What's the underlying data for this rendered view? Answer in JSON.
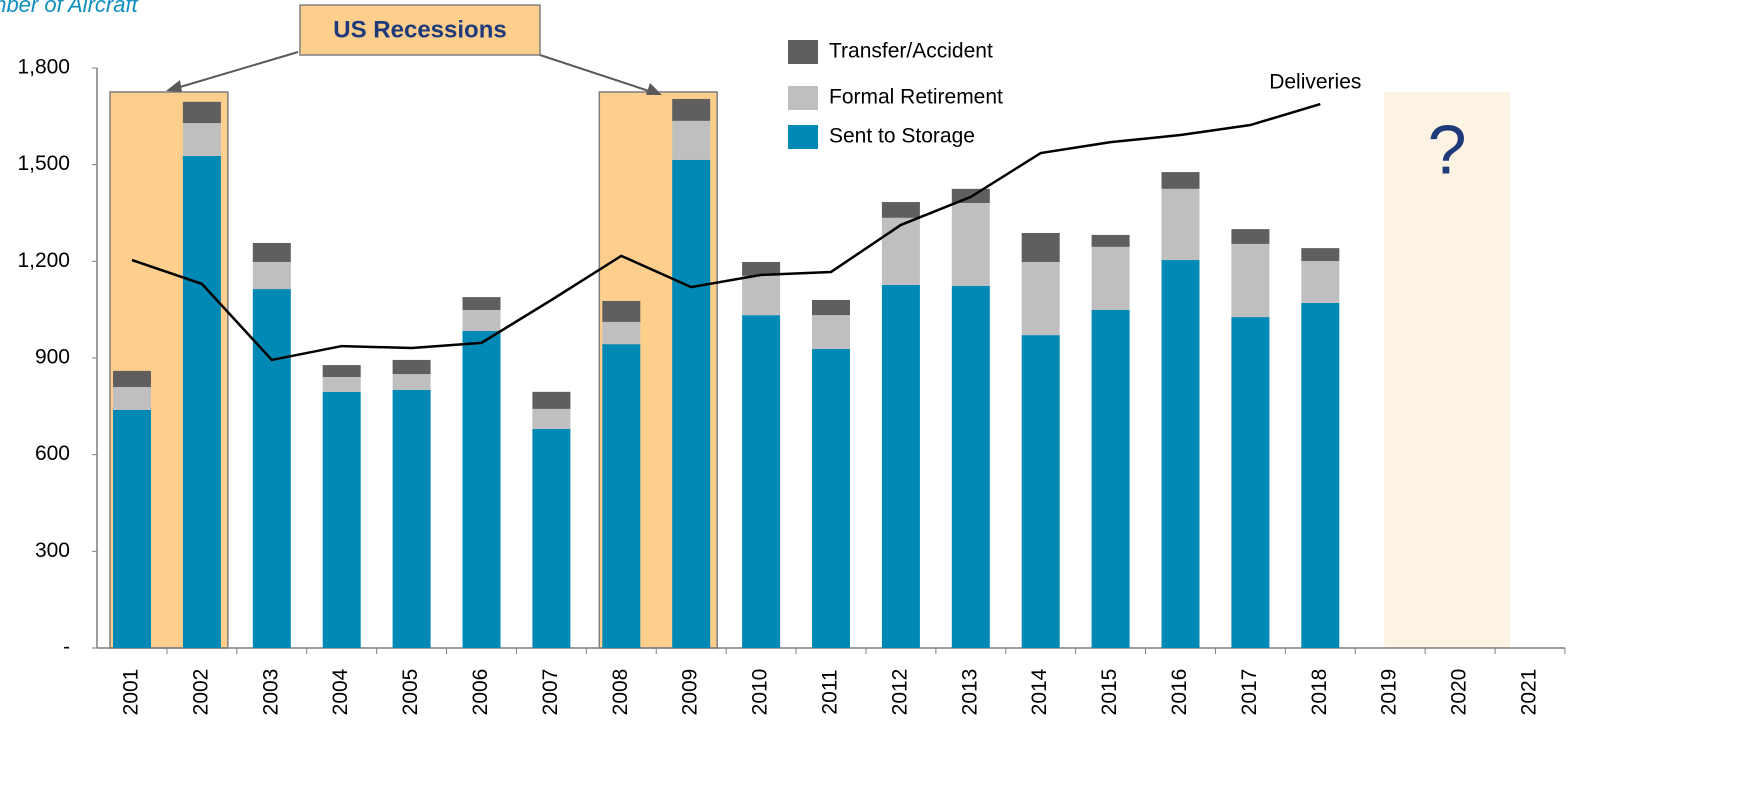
{
  "chart_data": {
    "type": "bar",
    "stacked": true,
    "y_axis_label": "Number of Aircraft",
    "categories": [
      "2001",
      "2002",
      "2003",
      "2004",
      "2005",
      "2006",
      "2007",
      "2008",
      "2009",
      "2010",
      "2011",
      "2012",
      "2013",
      "2014",
      "2015",
      "2016",
      "2017",
      "2018",
      "2019",
      "2020",
      "2021"
    ],
    "series": [
      {
        "name": "Sent to Storage",
        "color": "#0089b5",
        "values": [
          739,
          1527,
          1114,
          795,
          801,
          984,
          680,
          943,
          1515,
          1033,
          928,
          1127,
          1124,
          971,
          1049,
          1204,
          1027,
          1071,
          null,
          null,
          null
        ]
      },
      {
        "name": "Formal Retirement",
        "color": "#bfbfbf",
        "values": [
          71,
          102,
          84,
          46,
          49,
          65,
          62,
          69,
          121,
          122,
          105,
          208,
          257,
          227,
          196,
          221,
          227,
          130,
          null,
          null,
          null
        ]
      },
      {
        "name": "Transfer/Accident",
        "color": "#5f5f5f",
        "values": [
          50,
          66,
          59,
          37,
          44,
          40,
          53,
          65,
          68,
          43,
          47,
          49,
          44,
          90,
          37,
          52,
          46,
          40,
          null,
          null,
          null
        ]
      },
      {
        "name": "Deliveries",
        "type": "line",
        "color": "#000000",
        "values": [
          1204,
          1130,
          894,
          937,
          931,
          947,
          1080,
          1217,
          1120,
          1158,
          1167,
          1313,
          1400,
          1536,
          1570,
          1592,
          1623,
          1688,
          null,
          null,
          null
        ]
      }
    ],
    "ylim": [
      0,
      1800
    ],
    "yticks": [
      {
        "value": 0,
        "label": "-"
      },
      300,
      600,
      900,
      {
        "value": 1200,
        "label": "1,200"
      },
      {
        "value": 1500,
        "label": "1,500"
      },
      {
        "value": 1800,
        "label": "1,800"
      }
    ],
    "annotations": {
      "recession_label": "US Recessions",
      "recessions": [
        [
          "2001",
          "2002"
        ],
        [
          "2008",
          "2009"
        ]
      ],
      "forecast_label": "?",
      "forecast": [
        "2019",
        "2020"
      ]
    },
    "grid": false
  }
}
